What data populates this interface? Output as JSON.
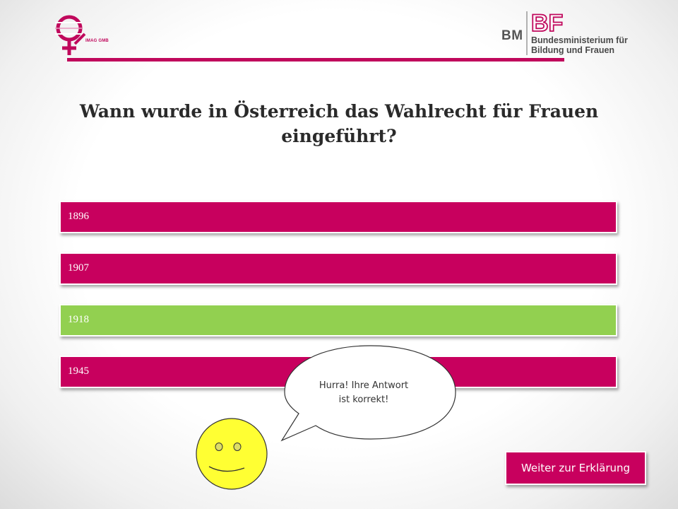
{
  "header": {
    "left_logo_text": "IMAG GMB",
    "right_logo": {
      "mark_letters": "BF",
      "abbr": "BM",
      "line1": "Bundesministerium für",
      "line2": "Bildung und Frauen"
    },
    "accent_color": "#c0085c"
  },
  "question": {
    "text": "Wann wurde in Österreich das Wahlrecht für Frauen eingeführt?"
  },
  "answers": [
    {
      "label": "1896",
      "state": "normal",
      "color": "#c8005e"
    },
    {
      "label": "1907",
      "state": "normal",
      "color": "#c8005e"
    },
    {
      "label": "1918",
      "state": "correct",
      "color": "#92d050"
    },
    {
      "label": "1945",
      "state": "normal",
      "color": "#c8005e"
    }
  ],
  "feedback": {
    "line1": "Hurra! Ihre Antwort",
    "line2": "ist korrekt!",
    "icon": "smiley-face-icon"
  },
  "next_button": {
    "label": "Weiter zur Erklärung"
  }
}
